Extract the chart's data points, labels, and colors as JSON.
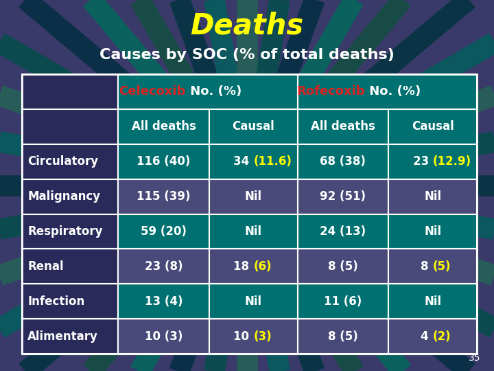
{
  "title": "Deaths",
  "subtitle": "Causes by SOC (% of total deaths)",
  "title_color": "#FFFF00",
  "subtitle_color": "#FFFFFF",
  "bg_color": "#3a3a6a",
  "teal_color": "#007070",
  "purple_color": "#4a4a7a",
  "dark_col0_color": "#2a2a5a",
  "border_color": "#FFFFFF",
  "red_color": "#DD2222",
  "yellow_color": "#FFFF00",
  "white_color": "#FFFFFF",
  "radial_colors": [
    "#005555",
    "#003344",
    "#006655",
    "#004433",
    "#002233",
    "#007766",
    "#336655"
  ],
  "col_headers": [
    "All deaths",
    "Causal",
    "All deaths",
    "Causal"
  ],
  "row_labels": [
    "Circulatory",
    "Malignancy",
    "Respiratory",
    "Renal",
    "Infection",
    "Alimentary"
  ],
  "rows": [
    [
      "116 (40)",
      "34 (11.6)",
      "68 (38)",
      "23 (12.9)"
    ],
    [
      "115 (39)",
      "Nil",
      "92 (51)",
      "Nil"
    ],
    [
      "59 (20)",
      "Nil",
      "24 (13)",
      "Nil"
    ],
    [
      "23 (8)",
      "18 (6)",
      "8 (5)",
      "8 (5)"
    ],
    [
      "13 (4)",
      "Nil",
      "11 (6)",
      "Nil"
    ],
    [
      "10 (3)",
      "10 (3)",
      "8 (5)",
      "4 (2)"
    ]
  ],
  "highlights": {
    "0_1": [
      "34 ",
      "(11.6)"
    ],
    "0_3": [
      "23 ",
      "(12.9)"
    ],
    "3_1": [
      "18 ",
      "(6)"
    ],
    "3_3": [
      "8 ",
      "(5)"
    ],
    "5_1": [
      "10 ",
      "(3)"
    ],
    "5_3": [
      "4 ",
      "(2)"
    ]
  },
  "row_bg_teal": [
    0,
    2,
    4
  ],
  "row_bg_purple": [
    1,
    3,
    5
  ],
  "page_number": "35"
}
